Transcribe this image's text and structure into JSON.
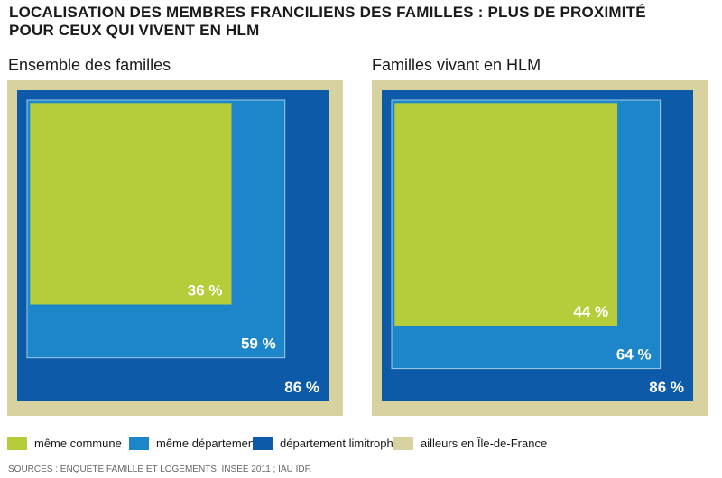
{
  "title_lines": [
    "LOCALISATION DES MEMBRES FRANCILIENS DES FAMILLES : PLUS DE PROXIMITÉ",
    "POUR CEUX QUI VIVENT EN HLM"
  ],
  "source": "SOURCES : ENQUÊTE FAMILLE ET LOGEMENTS, INSEE 2011 ; IAU ÎDF.",
  "colors": {
    "meme_commune": "#b5cd3a",
    "meme_departement": "#1d86cb",
    "departement_limitrophe": "#0d5aa8",
    "ailleurs": "#d8d1a0",
    "value_text": "#ffffff",
    "inner_border": "#9fcbe8"
  },
  "legend": [
    {
      "label": "même commune",
      "color": "#b5cd3a"
    },
    {
      "label": "même département",
      "color": "#1d86cb"
    },
    {
      "label": "département limitrophe",
      "color": "#0d5aa8"
    },
    {
      "label": "ailleurs en Île-de-France",
      "color": "#d8d1a0"
    }
  ],
  "chart_data": [
    {
      "type": "nested-square",
      "title": "Ensemble des familles",
      "total": 100,
      "series": [
        {
          "name": "même commune",
          "value": 36,
          "label": "36 %"
        },
        {
          "name": "même département",
          "value": 59,
          "label": "59 %"
        },
        {
          "name": "département limitrophe",
          "value": 86,
          "label": "86 %"
        },
        {
          "name": "ailleurs en Île-de-France",
          "value": 100,
          "label": ""
        }
      ]
    },
    {
      "type": "nested-square",
      "title": "Familles vivant en HLM",
      "total": 100,
      "series": [
        {
          "name": "même commune",
          "value": 44,
          "label": "44 %"
        },
        {
          "name": "même département",
          "value": 64,
          "label": "64 %"
        },
        {
          "name": "département limitrophe",
          "value": 86,
          "label": "86 %"
        },
        {
          "name": "ailleurs en Île-de-France",
          "value": 100,
          "label": ""
        }
      ]
    }
  ]
}
